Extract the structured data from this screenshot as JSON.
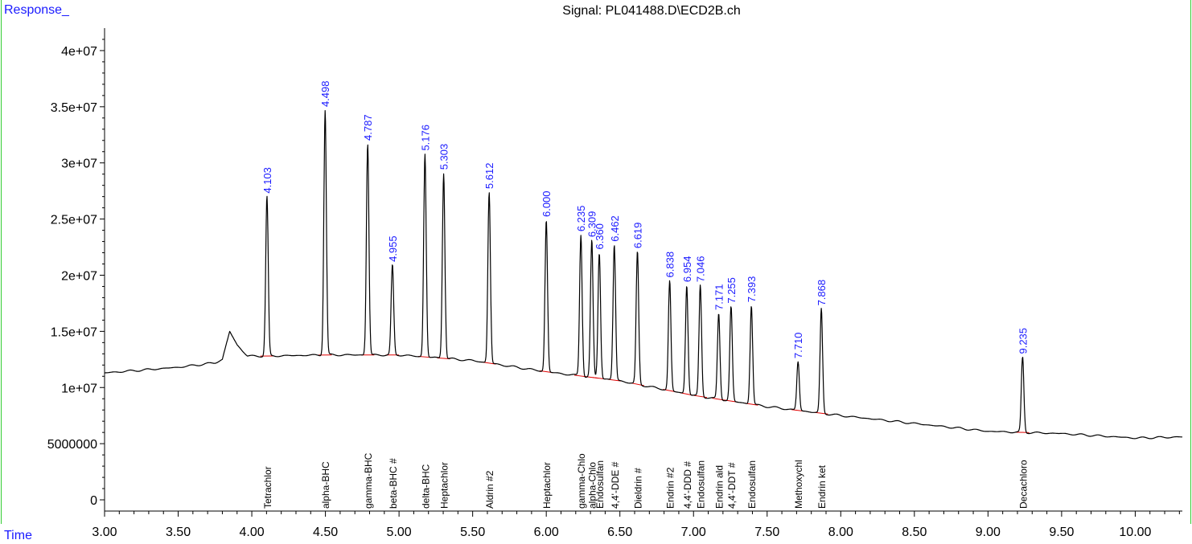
{
  "header": {
    "response_label": "Response_",
    "signal_title": "Signal: PL041488.D\\ECD2B.ch",
    "time_label": "Time"
  },
  "colors": {
    "label_blue": "#1a1aff",
    "trace": "#000000",
    "baseline_marks": "#e00000",
    "frame_green": "#33cc33"
  },
  "chart_data": {
    "type": "line",
    "title": "Signal: PL041488.D\\ECD2B.ch",
    "xlabel": "Time",
    "ylabel": "Response_",
    "xlim": [
      3.0,
      10.32
    ],
    "ylim": [
      -1000000,
      42000000
    ],
    "grid": false,
    "x_ticks": [
      3.0,
      3.5,
      4.0,
      4.5,
      5.0,
      5.5,
      6.0,
      6.5,
      7.0,
      7.5,
      8.0,
      8.5,
      9.0,
      9.5,
      10.0
    ],
    "x_tick_labels": [
      "3.00",
      "3.50",
      "4.00",
      "4.50",
      "5.00",
      "5.50",
      "6.00",
      "6.50",
      "7.00",
      "7.50",
      "8.00",
      "8.50",
      "9.00",
      "9.50",
      "10.00"
    ],
    "y_ticks": [
      0,
      5000000,
      10000000,
      15000000,
      20000000,
      25000000,
      30000000,
      35000000,
      40000000
    ],
    "y_tick_labels": [
      "0",
      "5000000",
      "1e+07",
      "1.5e+07",
      "2e+07",
      "2.5e+07",
      "3e+07",
      "3.5e+07",
      "4e+07"
    ],
    "baseline": [
      {
        "x": 3.0,
        "y": 11300000
      },
      {
        "x": 3.5,
        "y": 11800000
      },
      {
        "x": 3.75,
        "y": 12200000
      },
      {
        "x": 3.8,
        "y": 12500000
      },
      {
        "x": 3.85,
        "y": 15000000
      },
      {
        "x": 3.9,
        "y": 13800000
      },
      {
        "x": 3.97,
        "y": 12800000
      },
      {
        "x": 4.1,
        "y": 12800000
      },
      {
        "x": 4.5,
        "y": 12900000
      },
      {
        "x": 5.0,
        "y": 12900000
      },
      {
        "x": 5.3,
        "y": 12600000
      },
      {
        "x": 5.5,
        "y": 12400000
      },
      {
        "x": 6.0,
        "y": 11400000
      },
      {
        "x": 6.5,
        "y": 10600000
      },
      {
        "x": 7.0,
        "y": 9300000
      },
      {
        "x": 7.5,
        "y": 8300000
      },
      {
        "x": 8.0,
        "y": 7500000
      },
      {
        "x": 8.5,
        "y": 6800000
      },
      {
        "x": 9.0,
        "y": 6100000
      },
      {
        "x": 9.5,
        "y": 5900000
      },
      {
        "x": 10.0,
        "y": 5500000
      },
      {
        "x": 10.32,
        "y": 5600000
      }
    ],
    "peaks": [
      {
        "rt": 4.103,
        "rt_label": "4.103",
        "height": 27000000,
        "compound": "Tetrachlor"
      },
      {
        "rt": 4.498,
        "rt_label": "4.498",
        "height": 34700000,
        "compound": "alpha-BHC"
      },
      {
        "rt": 4.787,
        "rt_label": "4.787",
        "height": 31700000,
        "compound": "gamma-BHC"
      },
      {
        "rt": 4.955,
        "rt_label": "4.955",
        "height": 20900000,
        "compound": "beta-BHC #"
      },
      {
        "rt": 5.176,
        "rt_label": "5.176",
        "height": 30800000,
        "compound": "delta-BHC"
      },
      {
        "rt": 5.303,
        "rt_label": "5.303",
        "height": 29100000,
        "compound": "Heptachlor"
      },
      {
        "rt": 5.612,
        "rt_label": "5.612",
        "height": 27400000,
        "compound": "Aldrin #2"
      },
      {
        "rt": 6.0,
        "rt_label": "6.000",
        "height": 24900000,
        "compound": "Heptachlor"
      },
      {
        "rt": 6.235,
        "rt_label": "6.235",
        "height": 23600000,
        "compound": "gamma-Chlo"
      },
      {
        "rt": 6.309,
        "rt_label": "6.309",
        "height": 23100000,
        "compound": "alpha-Chlo"
      },
      {
        "rt": 6.36,
        "rt_label": "6.360",
        "height": 22000000,
        "compound": "Endosulfan"
      },
      {
        "rt": 6.462,
        "rt_label": "6.462",
        "height": 22700000,
        "compound": "4,4'-DDE #"
      },
      {
        "rt": 6.619,
        "rt_label": "6.619",
        "height": 22100000,
        "compound": "Dieldrin #"
      },
      {
        "rt": 6.838,
        "rt_label": "6.838",
        "height": 19500000,
        "compound": "Endrin #2"
      },
      {
        "rt": 6.954,
        "rt_label": "6.954",
        "height": 19100000,
        "compound": "4,4'-DDD #"
      },
      {
        "rt": 7.046,
        "rt_label": "7.046",
        "height": 19100000,
        "compound": "Endosulfan"
      },
      {
        "rt": 7.171,
        "rt_label": "7.171",
        "height": 16600000,
        "compound": "Endrin ald"
      },
      {
        "rt": 7.255,
        "rt_label": "7.255",
        "height": 17200000,
        "compound": "4,4'-DDT #"
      },
      {
        "rt": 7.393,
        "rt_label": "7.393",
        "height": 17300000,
        "compound": "Endosulfan"
      },
      {
        "rt": 7.71,
        "rt_label": "7.710",
        "height": 12300000,
        "compound": "Methoxychl"
      },
      {
        "rt": 7.868,
        "rt_label": "7.868",
        "height": 17000000,
        "compound": "Endrin ket"
      },
      {
        "rt": 9.235,
        "rt_label": "9.235",
        "height": 12700000,
        "compound": "Decachloro"
      }
    ]
  }
}
